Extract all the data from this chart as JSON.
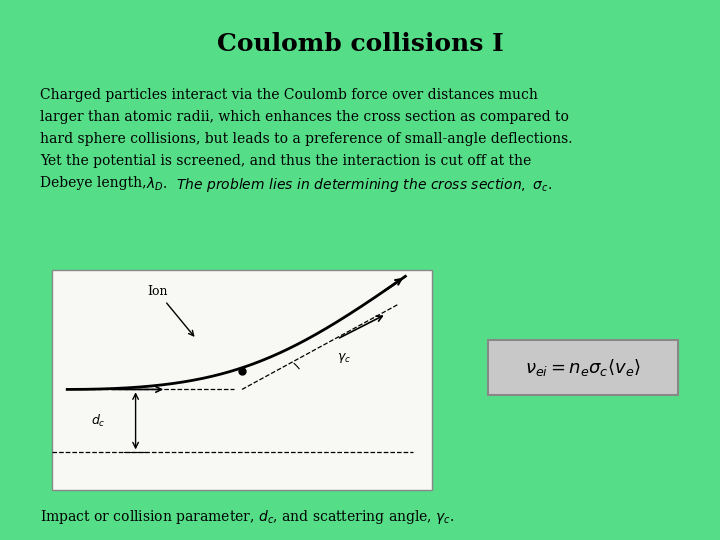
{
  "background_color": "#55DD88",
  "title": "Coulomb collisions I",
  "title_fontsize": 18,
  "body_fontsize": 10,
  "text_color": "#000000",
  "diagram_bg": "#f8f8f4",
  "formula_bg": "#cccccc",
  "body_lines": [
    "Charged particles interact via the Coulomb force over distances much",
    "larger than atomic radii, which enhances the cross section as compared to",
    "hard sphere collisions, but leads to a preference of small-angle deflections.",
    "Yet the potential is screened, and thus the interaction is cut off at the"
  ],
  "last_line_normal": "Debeye length, ",
  "last_line_math": "$\\lambda_D$. ",
  "last_line_bolditalic": "The problem lies in determining the cross section, $\\sigma_c$.",
  "caption": "Impact or collision parameter, $d_c$, and scattering angle, $\\gamma_c$."
}
